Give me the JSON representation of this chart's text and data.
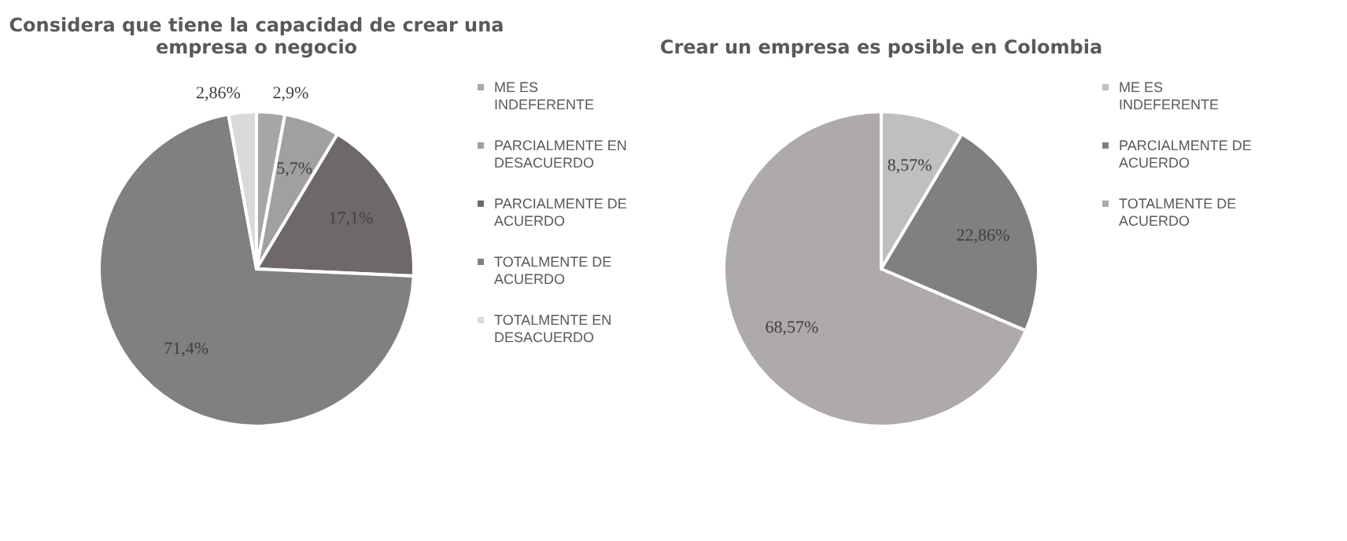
{
  "chart_data": [
    {
      "type": "pie",
      "title": "Considera que tiene la capacidad de crear una empresa o negocio",
      "categories": [
        "ME ES INDEFERENTE",
        "PARCIALMENTE EN DESACUERDO",
        "PARCIALMENTE DE ACUERDO",
        "TOTALMENTE DE ACUERDO",
        "TOTALMENTE EN DESACUERDO"
      ],
      "values": [
        2.9,
        5.7,
        17.1,
        71.4,
        2.86
      ],
      "colors": [
        "#a6a6a6",
        "#a0a0a0",
        "#6f6868",
        "#808080",
        "#d9d9d9"
      ],
      "value_labels": [
        "2,9%",
        "5,7%",
        "17,1%",
        "71,4%",
        "2,86%"
      ],
      "legend": "right"
    },
    {
      "type": "pie",
      "title": "Crear un empresa es posible en Colombia",
      "categories": [
        "ME ES INDEFERENTE",
        "PARCIALMENTE DE ACUERDO",
        "TOTALMENTE DE ACUERDO"
      ],
      "values": [
        8.57,
        22.86,
        68.57
      ],
      "colors": [
        "#bfbfbf",
        "#808080",
        "#aeaaaa"
      ],
      "value_labels": [
        "8,57%",
        "22,86%",
        "68,57%"
      ],
      "legend": "right"
    }
  ]
}
